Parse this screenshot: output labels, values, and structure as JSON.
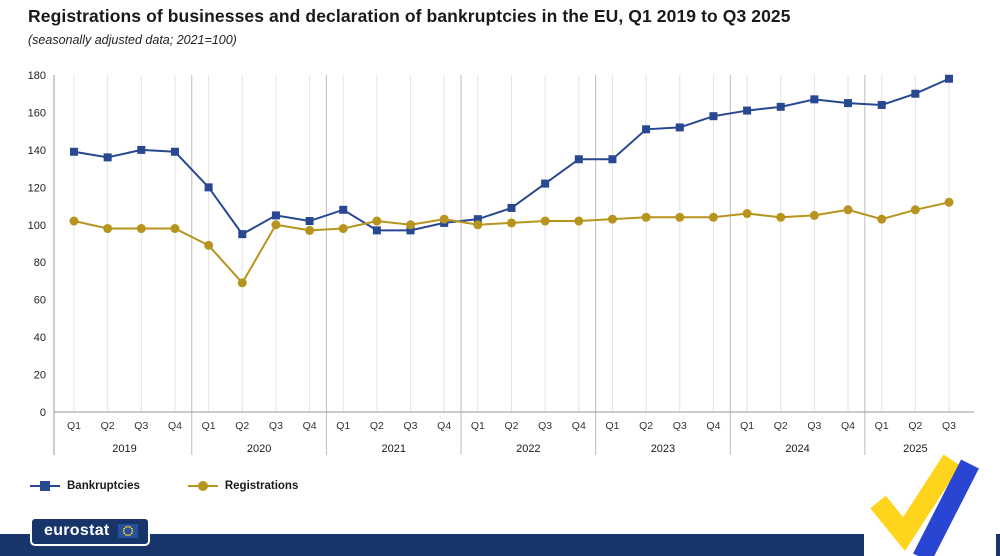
{
  "title": "Registrations of businesses and declaration of bankruptcies in the EU, Q1 2019 to Q3 2025",
  "subtitle": "(seasonally adjusted data; 2021=100)",
  "legend": [
    {
      "label": "Bankruptcies",
      "marker": "square"
    },
    {
      "label": "Registrations",
      "marker": "circle"
    }
  ],
  "footer": {
    "logo_text": "eurostat"
  },
  "colors": {
    "bankruptcies": "#284891",
    "registrations": "#B6941E",
    "grid": "#e4e4e4",
    "axis": "#999999",
    "year_separator": "#bbbbbb",
    "footer_bar": "#17356b",
    "deco_yellow": "#FFD41C",
    "deco_blue": "#2946d2"
  },
  "chart_data": {
    "type": "line",
    "title": "Registrations of businesses and declaration of bankruptcies in the EU, Q1 2019 to Q3 2025",
    "subtitle": "(seasonally adjusted data; 2021=100)",
    "ylim": [
      0,
      180
    ],
    "ytick_step": 20,
    "grid": "vertical-only",
    "legend_position": "bottom-left",
    "x_quarters": [
      "Q1",
      "Q2",
      "Q3",
      "Q4",
      "Q1",
      "Q2",
      "Q3",
      "Q4",
      "Q1",
      "Q2",
      "Q3",
      "Q4",
      "Q1",
      "Q2",
      "Q3",
      "Q4",
      "Q1",
      "Q2",
      "Q3",
      "Q4",
      "Q1",
      "Q2",
      "Q3",
      "Q4",
      "Q1",
      "Q2",
      "Q3"
    ],
    "years": [
      {
        "label": "2019",
        "quarters": 4
      },
      {
        "label": "2020",
        "quarters": 4
      },
      {
        "label": "2021",
        "quarters": 4
      },
      {
        "label": "2022",
        "quarters": 4
      },
      {
        "label": "2023",
        "quarters": 4
      },
      {
        "label": "2024",
        "quarters": 4
      },
      {
        "label": "2025",
        "quarters": 3
      }
    ],
    "series": [
      {
        "name": "Bankruptcies",
        "marker": "square",
        "color": "#284891",
        "values": [
          139,
          136,
          140,
          139,
          120,
          95,
          105,
          102,
          108,
          97,
          97,
          101,
          103,
          109,
          122,
          135,
          135,
          151,
          152,
          158,
          161,
          163,
          167,
          165,
          164,
          170,
          178
        ]
      },
      {
        "name": "Registrations",
        "marker": "circle",
        "color": "#B6941E",
        "values": [
          102,
          98,
          98,
          98,
          89,
          69,
          100,
          97,
          98,
          102,
          100,
          103,
          100,
          101,
          102,
          102,
          103,
          104,
          104,
          104,
          106,
          104,
          105,
          108,
          103,
          108,
          112
        ]
      }
    ]
  }
}
